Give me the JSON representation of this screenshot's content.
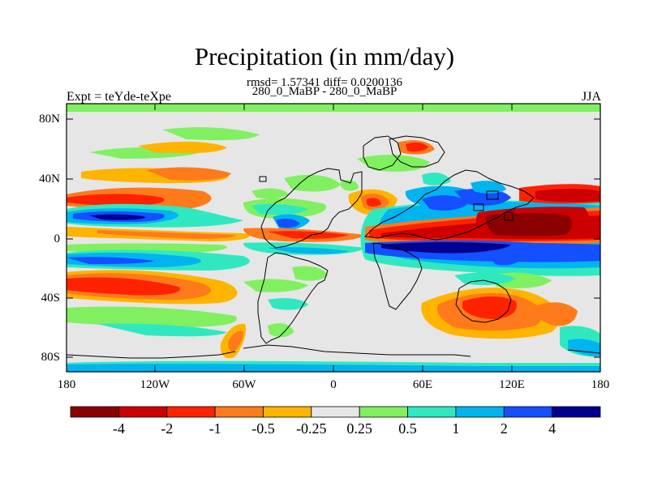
{
  "map": {
    "title": "Precipitation (in mm/day)",
    "stats_line": "rmsd= 1.57341 diff= 0.0200136",
    "subtitle": "280_0_MaBP - 280_0_MaBP",
    "left_label": "Expt = teYde-teXpe",
    "right_label": "JJA",
    "lat_ticks": [
      "80N",
      "40N",
      "0",
      "40S",
      "80S"
    ],
    "lon_ticks": [
      "180",
      "120W",
      "60W",
      "0",
      "60E",
      "120E",
      "180"
    ]
  },
  "colorbar": {
    "labels": [
      "-4",
      "-2",
      "-1",
      "-0.5",
      "-0.25",
      "0.25",
      "0.5",
      "1",
      "2",
      "4"
    ],
    "colors": [
      "#8b0000",
      "#cc0000",
      "#ff2200",
      "#ff7a1a",
      "#ffb400",
      "#e6e6e6",
      "#80f060",
      "#30e8c0",
      "#00b4f0",
      "#1450ff",
      "#000090"
    ]
  }
}
